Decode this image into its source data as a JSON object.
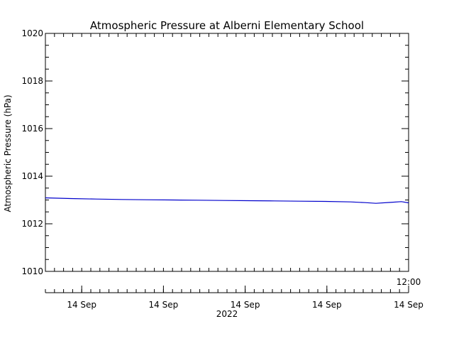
{
  "chart_data": {
    "type": "line",
    "title": "Atmospheric Pressure at Alberni Elementary School",
    "ylabel": "Atmospheric Pressure (hPa)",
    "xlabel": "",
    "ylim": [
      1010,
      1020
    ],
    "yticks": [
      1010,
      1012,
      1014,
      1016,
      1018,
      1020
    ],
    "ytick_labels": [
      "1010",
      "1012",
      "1014",
      "1016",
      "1018",
      "1020"
    ],
    "x_ticks": [
      {
        "t": 0.1,
        "label": "14 Sep"
      },
      {
        "t": 0.325,
        "label": "14 Sep"
      },
      {
        "t": 0.55,
        "label": "14 Sep"
      },
      {
        "t": 0.775,
        "label": "14 Sep"
      },
      {
        "t": 1.0,
        "label": "14 Sep"
      }
    ],
    "x_extra_labels": {
      "time": "12:00",
      "year": "2022"
    },
    "grid": false,
    "series": [
      {
        "color": "#0000cc",
        "x": [
          0.0,
          0.07,
          0.14,
          0.21,
          0.28,
          0.35,
          0.42,
          0.49,
          0.56,
          0.63,
          0.7,
          0.77,
          0.84,
          0.88,
          0.91,
          0.95,
          0.98,
          1.0
        ],
        "y": [
          1013.09,
          1013.06,
          1013.04,
          1013.02,
          1013.01,
          1013.0,
          1012.99,
          1012.98,
          1012.97,
          1012.96,
          1012.95,
          1012.94,
          1012.92,
          1012.89,
          1012.86,
          1012.9,
          1012.93,
          1012.88
        ]
      }
    ]
  }
}
